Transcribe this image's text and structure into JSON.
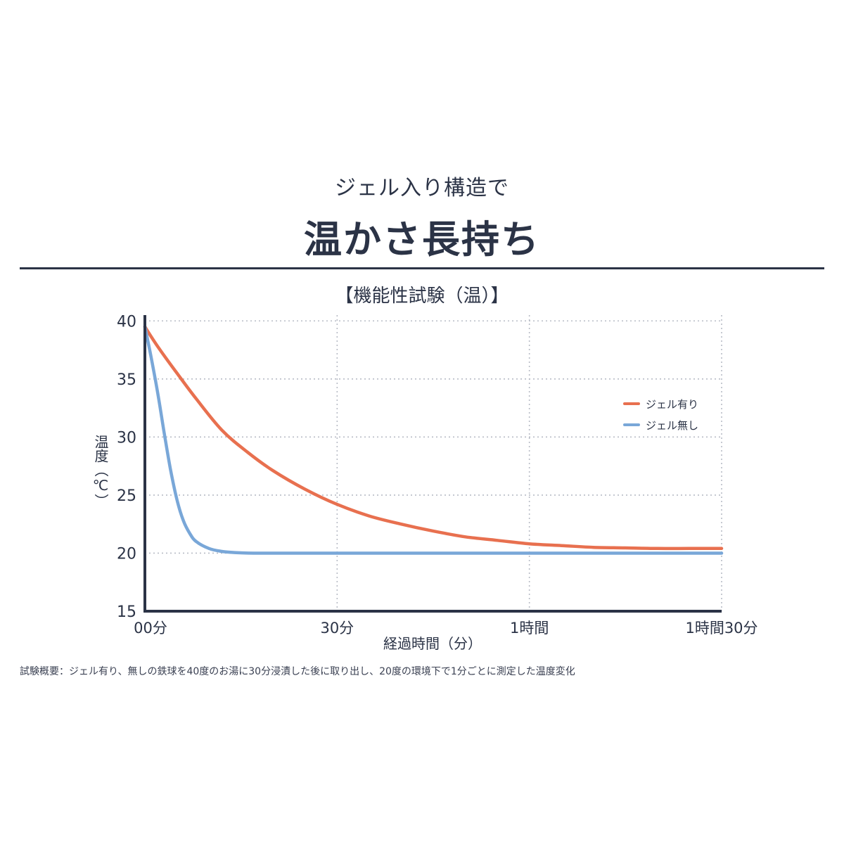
{
  "header": {
    "subtitle": "ジェル入り構造で",
    "title": "温かさ長持ち"
  },
  "footnote": "試験概要：ジェル有り、無しの鉄球を40度のお湯に30分浸漬した後に取り出し、20度の環境下で1分ごとに測定した温度変化",
  "colors": {
    "text": "#2b3346",
    "axis": "#2b3346",
    "grid": "#b8bcc6",
    "series_gel": "#e8704f",
    "series_nogel": "#79a7d8"
  },
  "chart_data": {
    "type": "line",
    "title": "【機能性試験（温）】",
    "xlabel": "経過時間（分）",
    "ylabel": "温度（℃）",
    "xlim": [
      0,
      90
    ],
    "ylim": [
      15,
      40.5
    ],
    "x_ticks": [
      {
        "value": 0,
        "label": "00分"
      },
      {
        "value": 30,
        "label": "30分"
      },
      {
        "value": 60,
        "label": "1時間"
      },
      {
        "value": 90,
        "label": "1時間30分"
      }
    ],
    "y_ticks": [
      15,
      20,
      25,
      30,
      35,
      40
    ],
    "grid": true,
    "legend_position": "top-right",
    "series": [
      {
        "name": "ジェル有り",
        "color": "#e8704f",
        "x": [
          0,
          2,
          5,
          8,
          12,
          16,
          20,
          25,
          30,
          35,
          40,
          45,
          50,
          55,
          60,
          65,
          70,
          75,
          80,
          85,
          90
        ],
        "y": [
          39.5,
          37.8,
          35.5,
          33.3,
          30.6,
          28.7,
          27.1,
          25.5,
          24.2,
          23.2,
          22.5,
          21.9,
          21.4,
          21.1,
          20.8,
          20.65,
          20.5,
          20.45,
          20.4,
          20.4,
          20.4
        ]
      },
      {
        "name": "ジェル無し",
        "color": "#79a7d8",
        "x": [
          0,
          1,
          2,
          3,
          4,
          5,
          6,
          7,
          8,
          10,
          12,
          14,
          17,
          20,
          25,
          30,
          40,
          50,
          60,
          70,
          80,
          90
        ],
        "y": [
          39.5,
          36.8,
          33.8,
          30.4,
          27.2,
          24.6,
          22.8,
          21.7,
          21.0,
          20.4,
          20.15,
          20.05,
          20.0,
          20.0,
          20.0,
          20.0,
          20.0,
          20.0,
          20.0,
          20.0,
          20.0,
          20.0
        ]
      }
    ]
  }
}
